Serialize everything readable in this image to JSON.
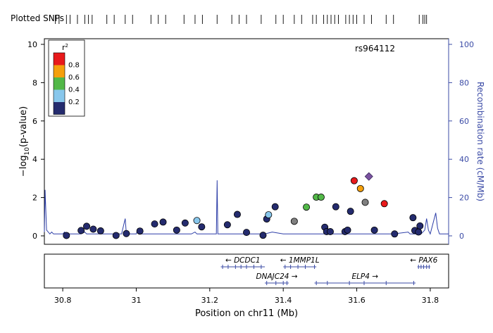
{
  "chart_data": {
    "type": "scatter",
    "title": "",
    "snp_track_label": "Plotted SNPs",
    "xlabel": "Position on chr11 (Mb)",
    "ylabel_main": "−log",
    "ylabel_sub": "10",
    "ylabel_tail": "(p-value)",
    "y2label": "Recombination rate (cM/Mb)",
    "xlim": [
      30.75,
      31.85
    ],
    "ylim": [
      0,
      10
    ],
    "y2lim": [
      0,
      100
    ],
    "xticks": [
      "30.8",
      "31",
      "31.2",
      "31.4",
      "31.6",
      "31.8"
    ],
    "xtick_values": [
      30.8,
      31.0,
      31.2,
      31.4,
      31.6,
      31.8
    ],
    "yticks": [
      "0",
      "2",
      "4",
      "6",
      "8",
      "10"
    ],
    "ytick_values": [
      0,
      2,
      4,
      6,
      8,
      10
    ],
    "y2ticks": [
      "0",
      "20",
      "40",
      "60",
      "80",
      "100"
    ],
    "y2tick_values": [
      0,
      20,
      40,
      60,
      80,
      100
    ],
    "lead_snp": {
      "label": "rs964112",
      "x": 31.633,
      "y": 3.1
    },
    "legend": {
      "title_base": "r",
      "title_sup": "2",
      "placement": "top-left",
      "bins": [
        {
          "label": "0.8",
          "color": "#e8191b"
        },
        {
          "label": "0.6",
          "color": "#f5a00c"
        },
        {
          "label": "0.4",
          "color": "#52b848"
        },
        {
          "label": "0.2",
          "color": "#88c7ec"
        },
        {
          "label": "",
          "color": "#242b6e"
        }
      ]
    },
    "colors": {
      "axis_left": "#000000",
      "axis_right": "#3b4ba6",
      "recomb_line": "#2e3fa8",
      "lead": "#7b52a0"
    },
    "points": [
      {
        "x": 30.81,
        "y": 0.02,
        "c": "#242b6e"
      },
      {
        "x": 30.85,
        "y": 0.28,
        "c": "#242b6e"
      },
      {
        "x": 30.865,
        "y": 0.5,
        "c": "#242b6e"
      },
      {
        "x": 30.883,
        "y": 0.35,
        "c": "#242b6e"
      },
      {
        "x": 30.903,
        "y": 0.26,
        "c": "#242b6e"
      },
      {
        "x": 30.945,
        "y": 0.02,
        "c": "#242b6e"
      },
      {
        "x": 30.973,
        "y": 0.12,
        "c": "#242b6e"
      },
      {
        "x": 31.01,
        "y": 0.25,
        "c": "#242b6e"
      },
      {
        "x": 31.05,
        "y": 0.62,
        "c": "#242b6e"
      },
      {
        "x": 31.073,
        "y": 0.72,
        "c": "#242b6e"
      },
      {
        "x": 31.11,
        "y": 0.3,
        "c": "#242b6e"
      },
      {
        "x": 31.133,
        "y": 0.67,
        "c": "#242b6e"
      },
      {
        "x": 31.165,
        "y": 0.8,
        "c": "#88c7ec"
      },
      {
        "x": 31.178,
        "y": 0.47,
        "c": "#242b6e"
      },
      {
        "x": 31.248,
        "y": 0.58,
        "c": "#242b6e"
      },
      {
        "x": 31.275,
        "y": 1.12,
        "c": "#242b6e"
      },
      {
        "x": 31.3,
        "y": 0.18,
        "c": "#242b6e"
      },
      {
        "x": 31.345,
        "y": 0.03,
        "c": "#242b6e"
      },
      {
        "x": 31.355,
        "y": 0.88,
        "c": "#242b6e"
      },
      {
        "x": 31.36,
        "y": 1.1,
        "c": "#88c7ec"
      },
      {
        "x": 31.378,
        "y": 1.52,
        "c": "#242b6e"
      },
      {
        "x": 31.43,
        "y": 0.76,
        "c": "#808080"
      },
      {
        "x": 31.463,
        "y": 1.5,
        "c": "#52b848"
      },
      {
        "x": 31.49,
        "y": 2.02,
        "c": "#52b848"
      },
      {
        "x": 31.503,
        "y": 2.02,
        "c": "#52b848"
      },
      {
        "x": 31.513,
        "y": 0.45,
        "c": "#242b6e"
      },
      {
        "x": 31.518,
        "y": 0.22,
        "c": "#242b6e"
      },
      {
        "x": 31.528,
        "y": 0.22,
        "c": "#242b6e"
      },
      {
        "x": 31.543,
        "y": 1.52,
        "c": "#242b6e"
      },
      {
        "x": 31.568,
        "y": 0.22,
        "c": "#242b6e"
      },
      {
        "x": 31.575,
        "y": 0.3,
        "c": "#242b6e"
      },
      {
        "x": 31.583,
        "y": 1.28,
        "c": "#242b6e"
      },
      {
        "x": 31.593,
        "y": 2.88,
        "c": "#e8191b"
      },
      {
        "x": 31.61,
        "y": 2.47,
        "c": "#f5a00c"
      },
      {
        "x": 31.623,
        "y": 1.75,
        "c": "#808080"
      },
      {
        "x": 31.648,
        "y": 0.3,
        "c": "#242b6e"
      },
      {
        "x": 31.675,
        "y": 1.68,
        "c": "#e8191b"
      },
      {
        "x": 31.703,
        "y": 0.1,
        "c": "#242b6e"
      },
      {
        "x": 31.753,
        "y": 0.95,
        "c": "#242b6e"
      },
      {
        "x": 31.758,
        "y": 0.28,
        "c": "#242b6e"
      },
      {
        "x": 31.768,
        "y": 0.2,
        "c": "#242b6e"
      },
      {
        "x": 31.772,
        "y": 0.52,
        "c": "#242b6e"
      }
    ],
    "recomb": [
      [
        30.75,
        2
      ],
      [
        30.752,
        24
      ],
      [
        30.756,
        3
      ],
      [
        30.765,
        1
      ],
      [
        30.77,
        2
      ],
      [
        30.775,
        1
      ],
      [
        30.8,
        1
      ],
      [
        30.805,
        2
      ],
      [
        30.81,
        1
      ],
      [
        30.85,
        1
      ],
      [
        30.86,
        2
      ],
      [
        30.865,
        1
      ],
      [
        30.95,
        1
      ],
      [
        30.96,
        1
      ],
      [
        30.97,
        9
      ],
      [
        30.973,
        1
      ],
      [
        31.0,
        1
      ],
      [
        31.005,
        4
      ],
      [
        31.008,
        1
      ],
      [
        31.1,
        1
      ],
      [
        31.15,
        1
      ],
      [
        31.16,
        2
      ],
      [
        31.165,
        1
      ],
      [
        31.21,
        1
      ],
      [
        31.218,
        1
      ],
      [
        31.22,
        29
      ],
      [
        31.222,
        1
      ],
      [
        31.3,
        1
      ],
      [
        31.35,
        1
      ],
      [
        31.37,
        2
      ],
      [
        31.4,
        1
      ],
      [
        31.5,
        1
      ],
      [
        31.6,
        1
      ],
      [
        31.65,
        1
      ],
      [
        31.7,
        1
      ],
      [
        31.74,
        2
      ],
      [
        31.745,
        1
      ],
      [
        31.775,
        1
      ],
      [
        31.785,
        3
      ],
      [
        31.79,
        9
      ],
      [
        31.795,
        3
      ],
      [
        31.8,
        1
      ],
      [
        31.815,
        12
      ],
      [
        31.82,
        4
      ],
      [
        31.825,
        1
      ],
      [
        31.85,
        1
      ]
    ],
    "snp_track": [
      30.78,
      30.79,
      30.81,
      30.82,
      30.84,
      30.86,
      30.87,
      30.88,
      30.92,
      30.94,
      30.97,
      30.99,
      31.04,
      31.06,
      31.08,
      31.13,
      31.16,
      31.18,
      31.22,
      31.26,
      31.28,
      31.3,
      31.34,
      31.38,
      31.4,
      31.43,
      31.45,
      31.48,
      31.49,
      31.51,
      31.52,
      31.53,
      31.54,
      31.55,
      31.57,
      31.58,
      31.59,
      31.6,
      31.62,
      31.64,
      31.68,
      31.7,
      31.77,
      31.78,
      31.785,
      31.79
    ],
    "genes": [
      {
        "name": "DCDC1",
        "dir": "←",
        "row": 0,
        "start": 31.23,
        "end": 31.35,
        "exons": [
          31.235,
          31.25,
          31.27,
          31.285,
          31.3,
          31.32,
          31.34
        ]
      },
      {
        "name": "1MMP1L",
        "dir": "←",
        "row": 0,
        "start": 31.4,
        "end": 31.49,
        "exons": [
          31.405,
          31.42,
          31.44,
          31.46,
          31.485
        ]
      },
      {
        "name": "PAX6",
        "dir": "←",
        "row": 0,
        "start": 31.765,
        "end": 31.8,
        "exons": [
          31.768,
          31.775,
          31.782,
          31.79,
          31.797
        ]
      },
      {
        "name": "DNAJC24",
        "dir": "→",
        "row": 1,
        "start": 31.35,
        "end": 31.415,
        "exons": [
          31.355,
          31.38,
          31.4,
          31.41
        ]
      },
      {
        "name": "ELP4",
        "dir": "→",
        "row": 1,
        "start": 31.485,
        "end": 31.76,
        "exons": [
          31.49,
          31.52,
          31.58,
          31.62,
          31.68,
          31.755
        ]
      }
    ]
  }
}
